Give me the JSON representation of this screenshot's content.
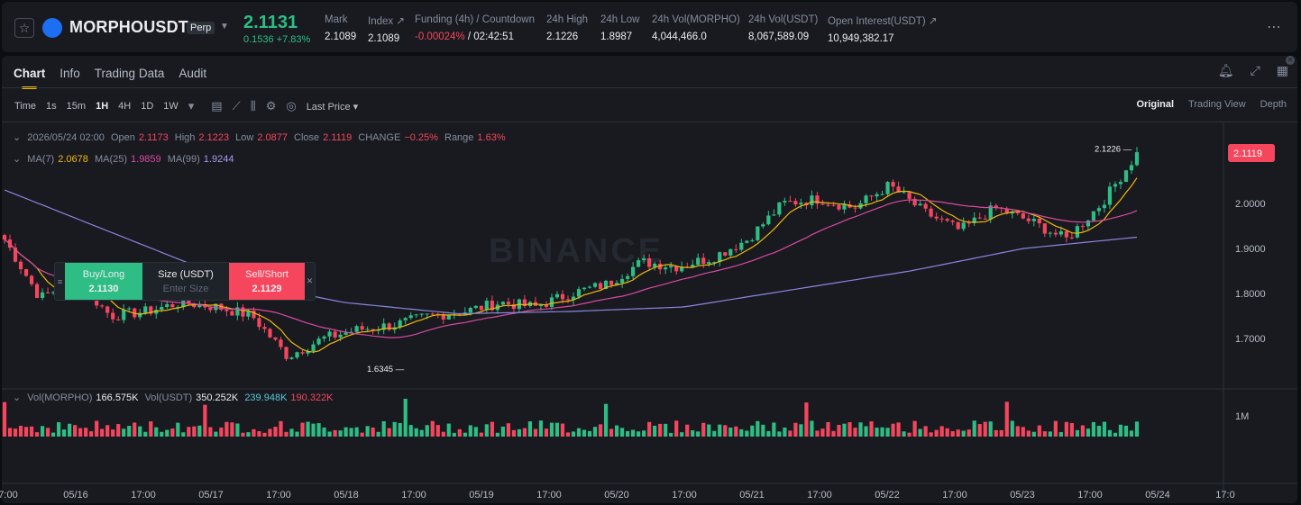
{
  "header": {
    "symbol": "MORPHOUSDT",
    "contract_type": "Perp",
    "last_price": "2.1131",
    "change": "0.1536 +7.83%",
    "stats": [
      {
        "label": "Mark",
        "value": "2.1089"
      },
      {
        "label": "Index ↗",
        "value": "2.1089"
      },
      {
        "label": "Funding (4h) / Countdown",
        "value": "-0.00024%",
        "value2": " / 02:42:51"
      },
      {
        "label": "24h High",
        "value": "2.1226"
      },
      {
        "label": "24h Low",
        "value": "1.8987"
      },
      {
        "label": "24h Vol(MORPHO)",
        "value": "4,044,466.0"
      },
      {
        "label": "24h Vol(USDT)",
        "value": "8,067,589.09"
      },
      {
        "label": "Open Interest(USDT) ↗",
        "value": "10,949,382.17"
      }
    ]
  },
  "tabs": [
    "Chart",
    "Info",
    "Trading Data",
    "Audit"
  ],
  "toolbar": {
    "intervals": [
      "Time",
      "1s",
      "15m",
      "1H",
      "4H",
      "1D",
      "1W"
    ],
    "selected_interval": "1H",
    "price_type": "Last Price ▾"
  },
  "views": [
    "Original",
    "Trading View",
    "Depth"
  ],
  "ohlc": {
    "date": "2026/05/24 02:00",
    "open_label": "Open",
    "open": "2.1173",
    "high_label": "High",
    "high": "2.1223",
    "low_label": "Low",
    "low": "2.0877",
    "close_label": "Close",
    "close": "2.1119",
    "change_label": "CHANGE",
    "change": "−0.25%",
    "range_label": "Range",
    "range": "1.63%"
  },
  "ma": {
    "ma7_label": "MA(7)",
    "ma7": "2.0678",
    "ma25_label": "MA(25)",
    "ma25": "1.9859",
    "ma99_label": "MA(99)",
    "ma99": "1.9244"
  },
  "vol": {
    "label1": "Vol(MORPHO)",
    "v1": "166.575K",
    "label2": "Vol(USDT)",
    "v2": "350.252K",
    "v3": "239.948K",
    "v4": "190.322K"
  },
  "order": {
    "buy_label": "Buy/Long",
    "buy_price": "2.1130",
    "size_label": "Size (USDT)",
    "size_placeholder": "Enter Size",
    "sell_label": "Sell/Short",
    "sell_price": "2.1129"
  },
  "watermark": "BINANCE",
  "colors": {
    "up": "#2ebd85",
    "down": "#f6465d",
    "ma7": "#f0b90b",
    "ma25": "#d94aa0",
    "ma99": "#8a86e0",
    "accent": "#f0b90b"
  },
  "chart_data": {
    "type": "candlestick",
    "interval": "1H",
    "price_axis": [
      "2.0000",
      "1.9000",
      "1.8000",
      "1.7000"
    ],
    "volume_axis": [
      "1M"
    ],
    "x_axis": [
      "7:00",
      "05/16",
      "17:00",
      "05/17",
      "17:00",
      "05/18",
      "17:00",
      "05/19",
      "17:00",
      "05/20",
      "17:00",
      "05/21",
      "17:00",
      "05/22",
      "17:00",
      "05/23",
      "17:00",
      "05/24",
      "17:0"
    ],
    "current_price_tag": "2.1119",
    "high_marker": "2.1226",
    "low_marker": "1.6345",
    "price_keypoints": [
      1.92,
      1.79,
      1.83,
      1.75,
      1.76,
      1.78,
      1.77,
      1.75,
      1.66,
      1.7,
      1.72,
      1.73,
      1.75,
      1.76,
      1.78,
      1.77,
      1.8,
      1.82,
      1.87,
      1.86,
      1.88,
      1.92,
      2.0,
      2.01,
      1.99,
      2.04,
      1.98,
      1.94,
      1.99,
      1.96,
      1.92,
      2.0,
      2.11
    ],
    "ma99_keypoints": [
      2.03,
      1.93,
      1.83,
      1.78,
      1.755,
      1.76,
      1.77,
      1.81,
      1.85,
      1.9,
      1.925
    ],
    "volume_note": "volume bars with MA lines"
  }
}
